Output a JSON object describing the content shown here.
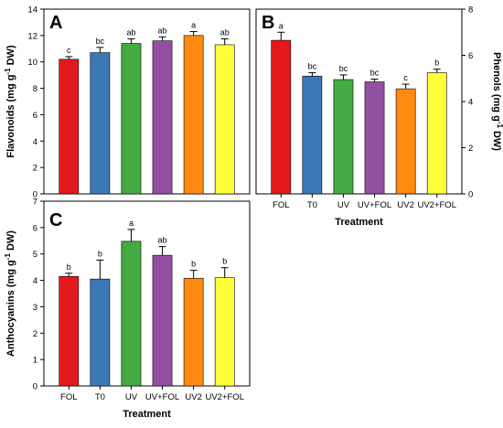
{
  "chart_data": [
    {
      "type": "bar",
      "panel": "A",
      "ylabel": "Flavonoids (mg g",
      "ylabel_sup": "-1",
      "ylabel_tail": " DW)",
      "xlabel": "",
      "ylim": [
        0,
        14
      ],
      "yticks": [
        "0",
        "2",
        "4",
        "6",
        "8",
        "10",
        "12",
        "14"
      ],
      "categories": [],
      "values": [
        10.2,
        10.7,
        11.4,
        11.6,
        12.0,
        11.3
      ],
      "errors": [
        0.2,
        0.4,
        0.35,
        0.3,
        0.3,
        0.45
      ],
      "labels": [
        "c",
        "bc",
        "ab",
        "ab",
        "a",
        "ab"
      ],
      "colors": [
        "#e3191c",
        "#3b78b8",
        "#44aa44",
        "#944fa3",
        "#ff8a12",
        "#ffff3a"
      ]
    },
    {
      "type": "bar",
      "panel": "B",
      "ylabel": "Phenols (mg g",
      "ylabel_sup": "-1",
      "ylabel_tail": " DW)",
      "xlabel": "Treatment",
      "ylim": [
        0,
        8
      ],
      "yticks": [
        "0",
        "2",
        "4",
        "6",
        "8"
      ],
      "categories": [
        "FOL",
        "T0",
        "UV",
        "UV+FOL",
        "UV2",
        "UV2+FOL"
      ],
      "values": [
        6.65,
        5.1,
        4.95,
        4.85,
        4.55,
        5.25
      ],
      "errors": [
        0.35,
        0.15,
        0.2,
        0.12,
        0.2,
        0.15
      ],
      "labels": [
        "a",
        "bc",
        "bc",
        "bc",
        "c",
        "b"
      ],
      "colors": [
        "#e3191c",
        "#3b78b8",
        "#44aa44",
        "#944fa3",
        "#ff8a12",
        "#ffff3a"
      ]
    },
    {
      "type": "bar",
      "panel": "C",
      "ylabel": "Anthocyanins (mg g",
      "ylabel_sup": "-1",
      "ylabel_tail": " DW)",
      "xlabel": "Treatment",
      "ylim": [
        0,
        7
      ],
      "yticks": [
        "0",
        "1",
        "2",
        "3",
        "4",
        "5",
        "6",
        "7"
      ],
      "categories": [
        "FOL",
        "T0",
        "UV",
        "UV+FOL",
        "UV2",
        "UV2+FOL"
      ],
      "values": [
        4.15,
        4.05,
        5.48,
        4.95,
        4.08,
        4.1
      ],
      "errors": [
        0.12,
        0.72,
        0.45,
        0.33,
        0.3,
        0.38
      ],
      "labels": [
        "b",
        "b",
        "a",
        "ab",
        "b",
        "b"
      ],
      "colors": [
        "#e3191c",
        "#3b78b8",
        "#44aa44",
        "#944fa3",
        "#ff8a12",
        "#ffff3a"
      ]
    }
  ]
}
